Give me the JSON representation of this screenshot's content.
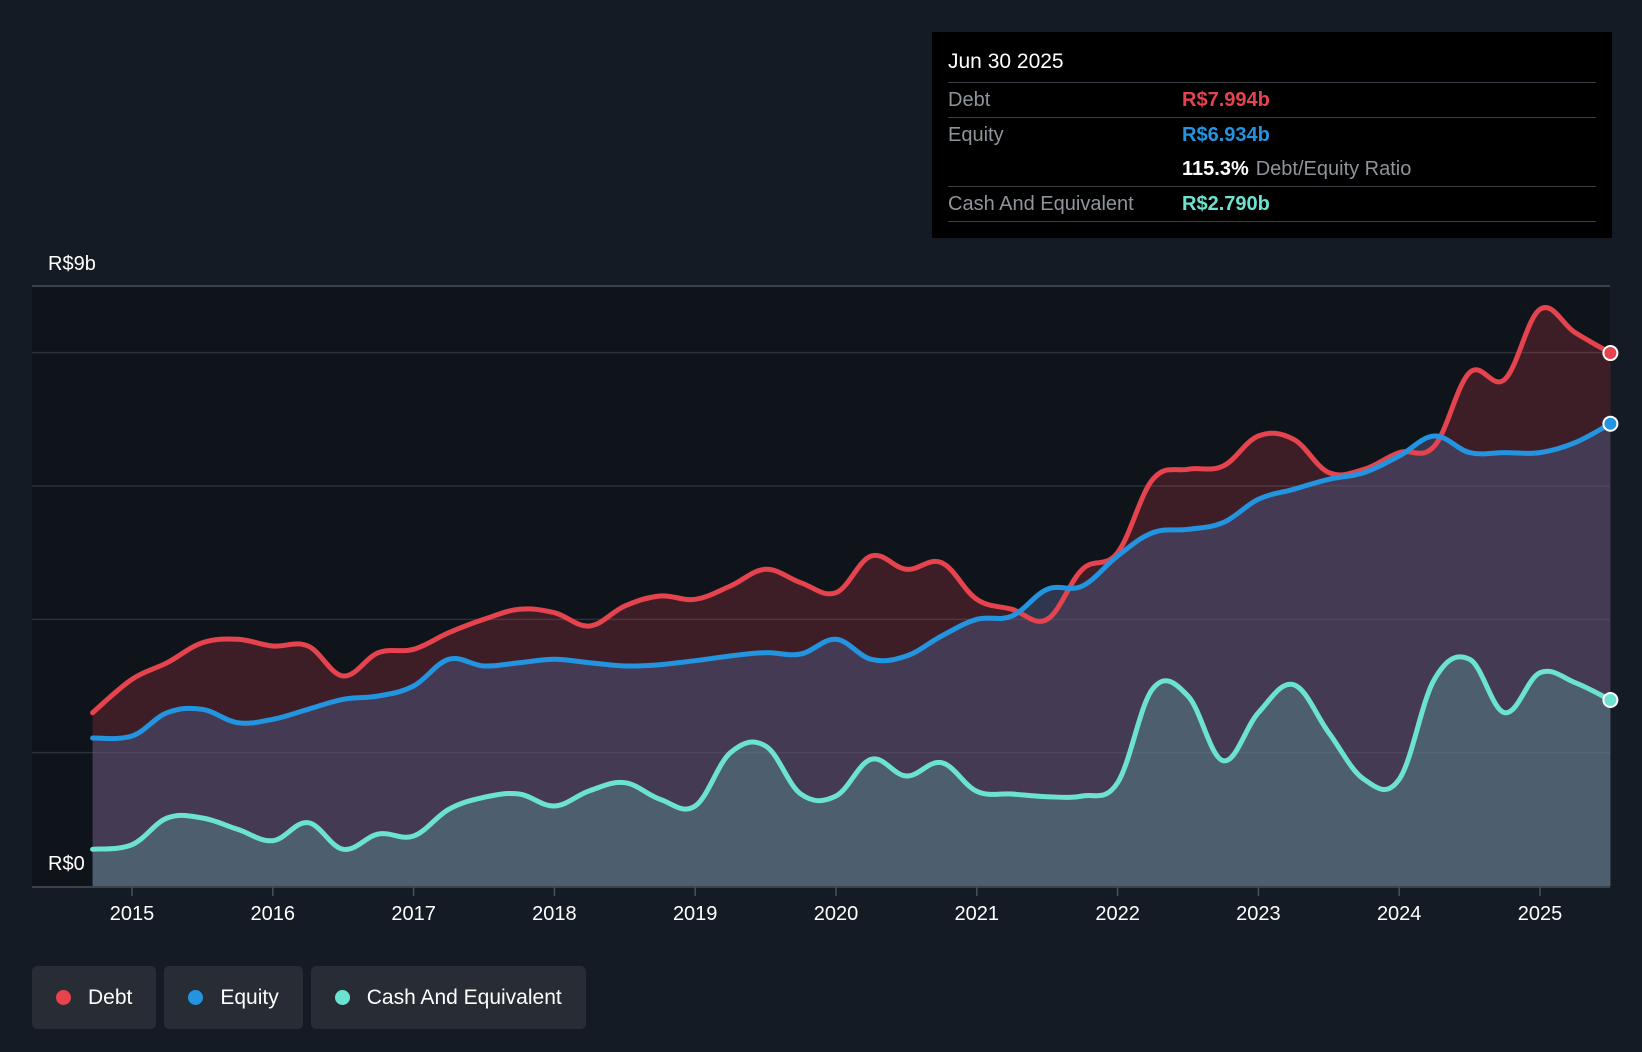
{
  "colors": {
    "background": "#151b24",
    "debt": "#e5434e",
    "equity": "#2394df",
    "cash": "#6ce3d0"
  },
  "tooltip": {
    "date": "Jun 30 2025",
    "debt_label": "Debt",
    "debt_value": "R$7.994b",
    "equity_label": "Equity",
    "equity_value": "R$6.934b",
    "ratio_value": "115.3%",
    "ratio_label": "Debt/Equity Ratio",
    "cash_label": "Cash And Equivalent",
    "cash_value": "R$2.790b"
  },
  "legend": {
    "debt": "Debt",
    "equity": "Equity",
    "cash": "Cash And Equivalent"
  },
  "chart_data": {
    "type": "area",
    "title": "",
    "xlabel": "",
    "ylabel": "",
    "currency_unit": "R$ billions",
    "xlim": [
      2014.72,
      2025.5
    ],
    "ylim": [
      0,
      9
    ],
    "y_axis_labels": [
      "R$0",
      "R$9b"
    ],
    "x_ticks": [
      2015,
      2016,
      2017,
      2018,
      2019,
      2020,
      2021,
      2022,
      2023,
      2024,
      2025
    ],
    "x_tick_labels": [
      "2015",
      "2016",
      "2017",
      "2018",
      "2019",
      "2020",
      "2021",
      "2022",
      "2023",
      "2024",
      "2025"
    ],
    "gridlines": [
      0,
      2,
      4,
      6,
      8,
      9
    ],
    "series": [
      {
        "name": "Debt",
        "color": "#e5434e",
        "x": [
          2014.72,
          2015.0,
          2015.25,
          2015.5,
          2015.75,
          2016.0,
          2016.25,
          2016.5,
          2016.75,
          2017.0,
          2017.25,
          2017.5,
          2017.75,
          2018.0,
          2018.25,
          2018.5,
          2018.75,
          2019.0,
          2019.25,
          2019.5,
          2019.75,
          2020.0,
          2020.25,
          2020.5,
          2020.75,
          2021.0,
          2021.25,
          2021.5,
          2021.75,
          2022.0,
          2022.25,
          2022.5,
          2022.75,
          2023.0,
          2023.25,
          2023.5,
          2023.75,
          2024.0,
          2024.25,
          2024.5,
          2024.75,
          2025.0,
          2025.25,
          2025.5
        ],
        "values": [
          2.6,
          3.1,
          3.35,
          3.65,
          3.7,
          3.6,
          3.6,
          3.15,
          3.5,
          3.55,
          3.8,
          4.0,
          4.15,
          4.1,
          3.9,
          4.2,
          4.35,
          4.3,
          4.5,
          4.75,
          4.55,
          4.4,
          4.95,
          4.75,
          4.85,
          4.3,
          4.15,
          4.0,
          4.75,
          5.0,
          6.1,
          6.25,
          6.3,
          6.75,
          6.7,
          6.2,
          6.25,
          6.5,
          6.6,
          7.7,
          7.6,
          8.65,
          8.3,
          7.994
        ]
      },
      {
        "name": "Equity",
        "color": "#2394df",
        "x": [
          2014.72,
          2015.0,
          2015.25,
          2015.5,
          2015.75,
          2016.0,
          2016.25,
          2016.5,
          2016.75,
          2017.0,
          2017.25,
          2017.5,
          2017.75,
          2018.0,
          2018.25,
          2018.5,
          2018.75,
          2019.0,
          2019.25,
          2019.5,
          2019.75,
          2020.0,
          2020.25,
          2020.5,
          2020.75,
          2021.0,
          2021.25,
          2021.5,
          2021.75,
          2022.0,
          2022.25,
          2022.5,
          2022.75,
          2023.0,
          2023.25,
          2023.5,
          2023.75,
          2024.0,
          2024.25,
          2024.5,
          2024.75,
          2025.0,
          2025.25,
          2025.5
        ],
        "values": [
          2.22,
          2.25,
          2.6,
          2.65,
          2.45,
          2.5,
          2.65,
          2.8,
          2.85,
          3.0,
          3.4,
          3.3,
          3.35,
          3.4,
          3.35,
          3.3,
          3.32,
          3.38,
          3.45,
          3.5,
          3.48,
          3.7,
          3.4,
          3.45,
          3.75,
          4.0,
          4.05,
          4.45,
          4.5,
          4.95,
          5.3,
          5.35,
          5.45,
          5.8,
          5.95,
          6.1,
          6.2,
          6.45,
          6.75,
          6.5,
          6.5,
          6.5,
          6.65,
          6.934
        ]
      },
      {
        "name": "Cash And Equivalent",
        "color": "#6ce3d0",
        "x": [
          2014.72,
          2015.0,
          2015.25,
          2015.5,
          2015.75,
          2016.0,
          2016.25,
          2016.5,
          2016.75,
          2017.0,
          2017.25,
          2017.5,
          2017.75,
          2018.0,
          2018.25,
          2018.5,
          2018.75,
          2019.0,
          2019.25,
          2019.5,
          2019.75,
          2020.0,
          2020.25,
          2020.5,
          2020.75,
          2021.0,
          2021.25,
          2021.5,
          2021.75,
          2022.0,
          2022.25,
          2022.5,
          2022.75,
          2023.0,
          2023.25,
          2023.5,
          2023.75,
          2024.0,
          2024.25,
          2024.5,
          2024.75,
          2025.0,
          2025.25,
          2025.5
        ],
        "values": [
          0.55,
          0.62,
          1.02,
          1.02,
          0.85,
          0.68,
          0.95,
          0.55,
          0.78,
          0.75,
          1.15,
          1.33,
          1.38,
          1.2,
          1.43,
          1.55,
          1.3,
          1.2,
          2.0,
          2.1,
          1.38,
          1.35,
          1.9,
          1.65,
          1.85,
          1.42,
          1.38,
          1.34,
          1.35,
          1.55,
          2.96,
          2.85,
          1.88,
          2.6,
          3.02,
          2.3,
          1.6,
          1.6,
          3.1,
          3.4,
          2.6,
          3.2,
          3.05,
          2.79
        ]
      }
    ]
  }
}
